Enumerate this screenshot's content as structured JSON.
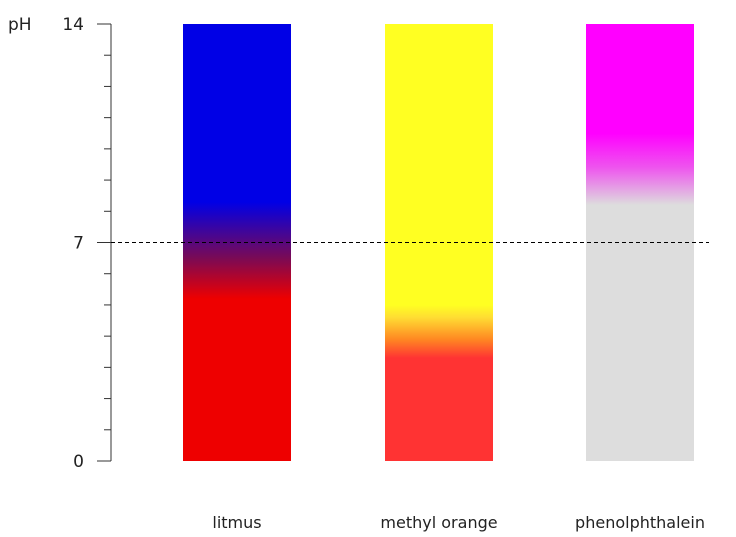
{
  "chart_data": {
    "type": "bar",
    "ylabel": "pH",
    "ylim": [
      0,
      14
    ],
    "y_ticks": [
      0,
      7,
      14
    ],
    "y_tick_labels": [
      "0",
      "7",
      "14"
    ],
    "reference_line": {
      "y": 7,
      "style": "dashed"
    },
    "grid": false,
    "legend": "none",
    "categories": [
      "litmus",
      "methyl orange",
      "phenolphthalein"
    ],
    "bars": [
      {
        "label": "litmus",
        "range": [
          0,
          14
        ],
        "color_stops": [
          {
            "ph": 0,
            "color": "#ee0000"
          },
          {
            "ph": 5.2,
            "color": "#ee0000"
          },
          {
            "ph": 6.5,
            "color": "#7a0a55"
          },
          {
            "ph": 8.3,
            "color": "#0000e6"
          },
          {
            "ph": 14,
            "color": "#0000e6"
          }
        ]
      },
      {
        "label": "methyl orange",
        "range": [
          0,
          14
        ],
        "color_stops": [
          {
            "ph": 0,
            "color": "#ff3333"
          },
          {
            "ph": 3.3,
            "color": "#ff3333"
          },
          {
            "ph": 3.9,
            "color": "#ff8822"
          },
          {
            "ph": 4.6,
            "color": "#ffdd33"
          },
          {
            "ph": 5.0,
            "color": "#ffff22"
          },
          {
            "ph": 14,
            "color": "#ffff22"
          }
        ]
      },
      {
        "label": "phenolphthalein",
        "range": [
          0,
          14
        ],
        "color_stops": [
          {
            "ph": 0,
            "color": "#dddddd"
          },
          {
            "ph": 8.2,
            "color": "#dddddd"
          },
          {
            "ph": 9.4,
            "color": "#ee55ee"
          },
          {
            "ph": 10.5,
            "color": "#ff00ff"
          },
          {
            "ph": 14,
            "color": "#ff00ff"
          }
        ]
      }
    ]
  }
}
